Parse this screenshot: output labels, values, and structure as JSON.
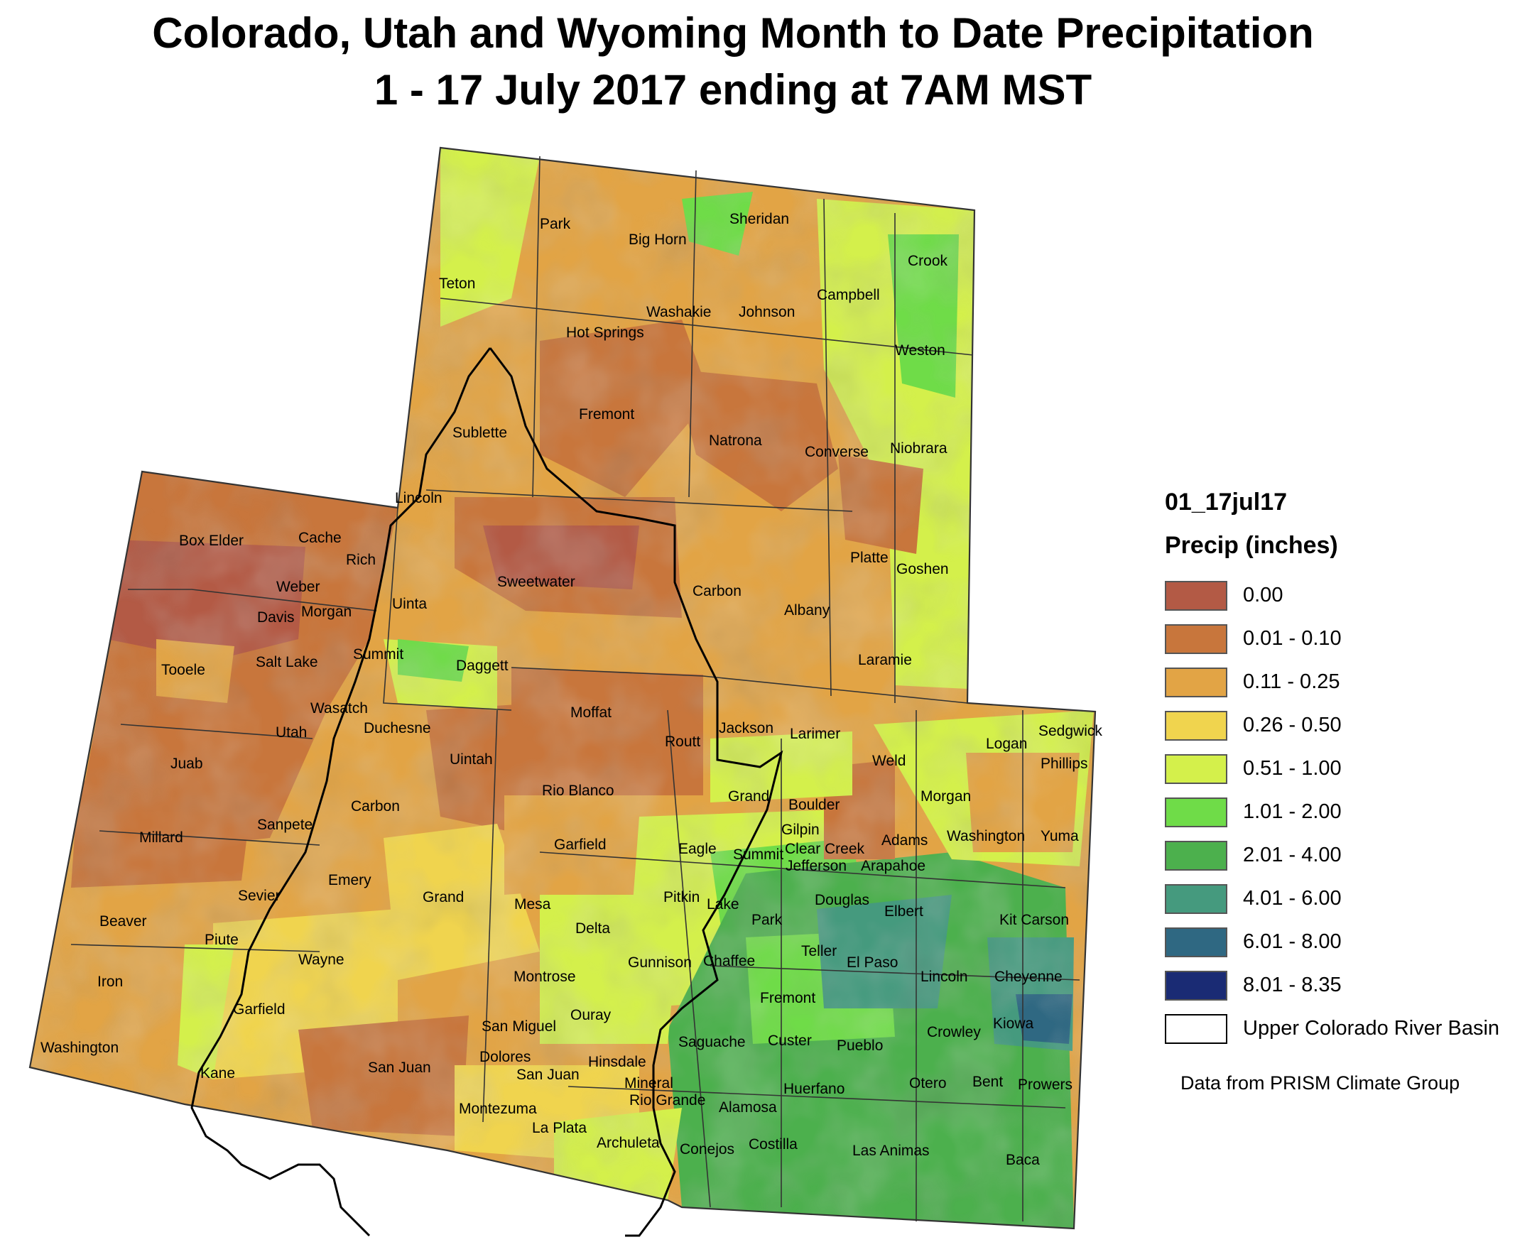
{
  "title": {
    "line1": "Colorado, Utah and Wyoming Month to Date Precipitation",
    "line2": "1 - 17 July 2017 ending at 7AM MST"
  },
  "legend": {
    "heading": "01_17jul17",
    "subheading": "Precip (inches)",
    "classes": [
      {
        "label": "0.00",
        "color": "#b35a45"
      },
      {
        "label": "0.01 - 0.10",
        "color": "#c8763c"
      },
      {
        "label": "0.11 - 0.25",
        "color": "#e2a445"
      },
      {
        "label": "0.26 - 0.50",
        "color": "#f0d44e"
      },
      {
        "label": "0.51 - 1.00",
        "color": "#d4f04b"
      },
      {
        "label": "1.01 - 2.00",
        "color": "#6fdc48"
      },
      {
        "label": "2.01 - 4.00",
        "color": "#4cb04d"
      },
      {
        "label": "4.01 - 6.00",
        "color": "#459a7e"
      },
      {
        "label": "6.01 - 8.00",
        "color": "#2f6882"
      },
      {
        "label": "8.01 - 8.35",
        "color": "#1a2b74"
      },
      {
        "label": "Upper Colorado River Basin",
        "color": "#ffffff"
      }
    ]
  },
  "credit": "Data from PRISM Climate Group",
  "counties": {
    "wyoming": [
      "Park",
      "Big Horn",
      "Sheridan",
      "Crook",
      "Teton",
      "Campbell",
      "Washakie",
      "Johnson",
      "Hot Springs",
      "Weston",
      "Fremont",
      "Sublette",
      "Natrona",
      "Converse",
      "Niobrara",
      "Lincoln",
      "Sweetwater",
      "Carbon",
      "Platte",
      "Goshen",
      "Uinta",
      "Albany",
      "Laramie"
    ],
    "utah": [
      "Box Elder",
      "Cache",
      "Rich",
      "Weber",
      "Davis",
      "Morgan",
      "Tooele",
      "Salt Lake",
      "Summit",
      "Daggett",
      "Wasatch",
      "Duchesne",
      "Utah",
      "Uintah",
      "Juab",
      "Carbon",
      "Sanpete",
      "Millard",
      "Emery",
      "Sevier",
      "Grand",
      "Beaver",
      "Piute",
      "Wayne",
      "Iron",
      "Garfield",
      "Washington",
      "Kane",
      "San Juan"
    ],
    "colorado": [
      "Moffat",
      "Jackson",
      "Larimer",
      "Sedgwick",
      "Logan",
      "Routt",
      "Weld",
      "Phillips",
      "Rio Blanco",
      "Grand",
      "Morgan",
      "Boulder",
      "Garfield",
      "Eagle",
      "Gilpin",
      "Clear Creek",
      "Summit",
      "Adams",
      "Washington",
      "Yuma",
      "Jefferson",
      "Arapahoe",
      "Mesa",
      "Pitkin",
      "Lake",
      "Douglas",
      "Elbert",
      "Park",
      "Kit Carson",
      "Delta",
      "Teller",
      "Gunnison",
      "Chaffee",
      "El Paso",
      "Lincoln",
      "Cheyenne",
      "Montrose",
      "Fremont",
      "Ouray",
      "San Miguel",
      "Kiowa",
      "Saguache",
      "Custer",
      "Pueblo",
      "Crowley",
      "Dolores",
      "Hinsdale",
      "San Juan",
      "Mineral",
      "Otero",
      "Bent",
      "Prowers",
      "Huerfano",
      "Rio Grande",
      "Alamosa",
      "Montezuma",
      "La Plata",
      "Archuleta",
      "Costilla",
      "Las Animas",
      "Conejos",
      "Baca"
    ]
  }
}
